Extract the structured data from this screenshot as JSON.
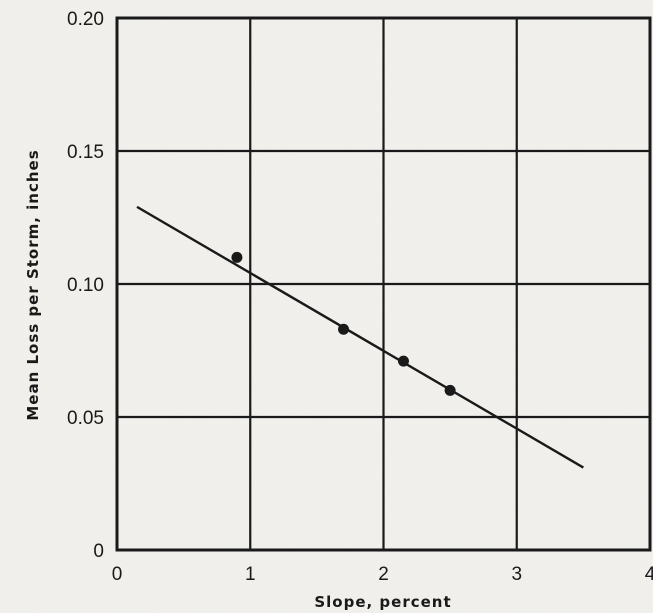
{
  "chart_data": {
    "type": "scatter",
    "title": "",
    "xlabel": "Slope, percent",
    "ylabel": "Mean Loss per Storm, inches",
    "xlim": [
      0,
      4
    ],
    "ylim": [
      0,
      0.2
    ],
    "x_ticks": [
      "0",
      "1",
      "2",
      "3",
      "4"
    ],
    "y_ticks": [
      "0",
      "0.05",
      "0.10",
      "0.15",
      "0.20"
    ],
    "grid": true,
    "legend": "none",
    "series": [
      {
        "type": "scatter",
        "x": [
          0.9,
          1.7,
          2.15,
          2.5
        ],
        "y": [
          0.11,
          0.083,
          0.071,
          0.06
        ]
      },
      {
        "type": "line",
        "x": [
          0.15,
          3.5
        ],
        "y": [
          0.129,
          0.031
        ]
      }
    ],
    "colors": {
      "ink": "#1a1a1a",
      "paper": "#f3f2ee"
    }
  }
}
